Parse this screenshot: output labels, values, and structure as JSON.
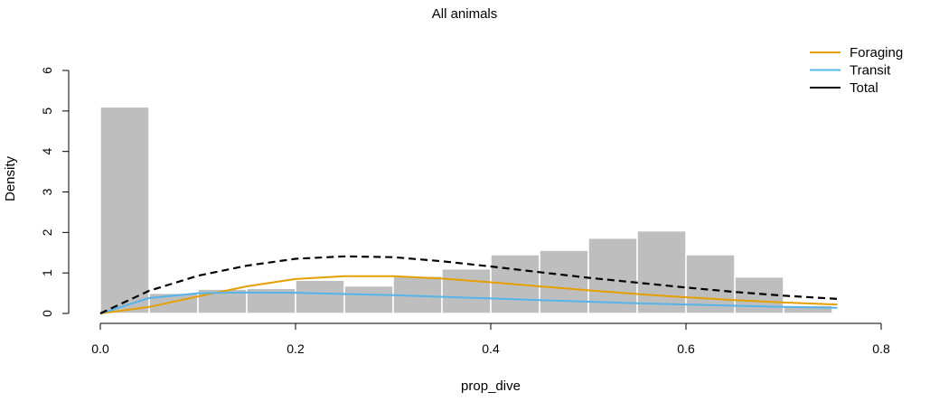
{
  "chart_data": {
    "type": "histogram",
    "title": "All animals",
    "xlabel": "prop_dive",
    "ylabel": "Density",
    "xlim": [
      0,
      0.8
    ],
    "ylim": [
      0,
      6
    ],
    "x_ticks": [
      "0.0",
      "0.2",
      "0.4",
      "0.6",
      "0.8"
    ],
    "y_ticks": [
      "0",
      "1",
      "2",
      "3",
      "4",
      "5",
      "6"
    ],
    "bin_width": 0.05,
    "bins": [
      {
        "start": 0.0,
        "density": 5.1
      },
      {
        "start": 0.05,
        "density": 0.5
      },
      {
        "start": 0.1,
        "density": 0.6
      },
      {
        "start": 0.15,
        "density": 0.62
      },
      {
        "start": 0.2,
        "density": 0.82
      },
      {
        "start": 0.25,
        "density": 0.68
      },
      {
        "start": 0.3,
        "density": 0.92
      },
      {
        "start": 0.35,
        "density": 1.1
      },
      {
        "start": 0.4,
        "density": 1.45
      },
      {
        "start": 0.45,
        "density": 1.56
      },
      {
        "start": 0.5,
        "density": 1.86
      },
      {
        "start": 0.55,
        "density": 2.04
      },
      {
        "start": 0.6,
        "density": 1.45
      },
      {
        "start": 0.65,
        "density": 0.9
      },
      {
        "start": 0.7,
        "density": 0.2
      }
    ],
    "bar_color": "#bebebe",
    "series": [
      {
        "name": "Foraging",
        "color": "#E69F00",
        "dash": "solid",
        "x": [
          0.0,
          0.05,
          0.1,
          0.15,
          0.2,
          0.25,
          0.3,
          0.35,
          0.4,
          0.45,
          0.5,
          0.55,
          0.6,
          0.65,
          0.7,
          0.755
        ],
        "y": [
          0.0,
          0.16,
          0.42,
          0.67,
          0.85,
          0.92,
          0.92,
          0.86,
          0.77,
          0.67,
          0.57,
          0.48,
          0.4,
          0.33,
          0.27,
          0.22
        ]
      },
      {
        "name": "Transit",
        "color": "#56B4E9",
        "dash": "solid",
        "x": [
          0.0,
          0.05,
          0.1,
          0.15,
          0.2,
          0.25,
          0.3,
          0.35,
          0.4,
          0.45,
          0.5,
          0.55,
          0.6,
          0.65,
          0.7,
          0.755
        ],
        "y": [
          0.0,
          0.38,
          0.5,
          0.52,
          0.51,
          0.48,
          0.45,
          0.41,
          0.37,
          0.33,
          0.29,
          0.25,
          0.22,
          0.19,
          0.16,
          0.14
        ]
      },
      {
        "name": "Total",
        "color": "#000000",
        "dash": "dashed",
        "x": [
          0.0,
          0.05,
          0.1,
          0.15,
          0.2,
          0.25,
          0.3,
          0.35,
          0.4,
          0.45,
          0.5,
          0.55,
          0.6,
          0.65,
          0.7,
          0.755
        ],
        "y": [
          0.0,
          0.56,
          0.93,
          1.18,
          1.35,
          1.41,
          1.39,
          1.29,
          1.16,
          1.02,
          0.88,
          0.76,
          0.64,
          0.53,
          0.44,
          0.36
        ]
      }
    ],
    "legend_position": "top-right",
    "grid": false
  }
}
